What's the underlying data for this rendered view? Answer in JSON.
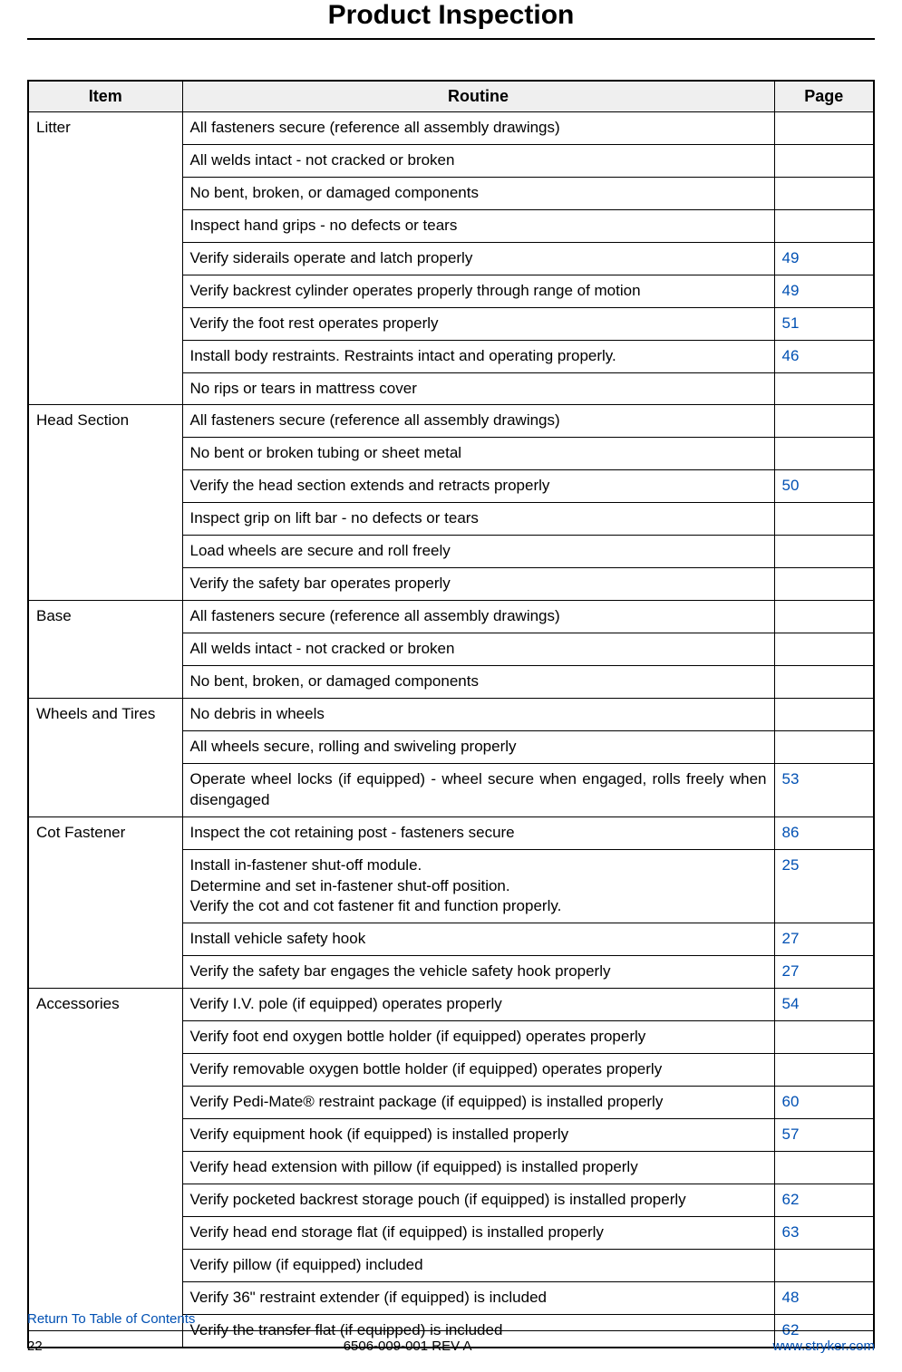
{
  "title": "Product Inspection",
  "headers": {
    "item": "Item",
    "routine": "Routine",
    "page": "Page"
  },
  "page_link_color": "#0050b3",
  "groups": [
    {
      "item": "Litter",
      "rows": [
        {
          "routine": "All fasteners secure (reference all assembly drawings)",
          "page": ""
        },
        {
          "routine": "All welds intact - not cracked or broken",
          "page": ""
        },
        {
          "routine": "No bent, broken, or damaged components",
          "page": ""
        },
        {
          "routine": "Inspect hand grips - no defects or tears",
          "page": ""
        },
        {
          "routine": "Verify siderails operate and latch properly",
          "page": "49"
        },
        {
          "routine": "Verify backrest cylinder operates properly through range of motion",
          "page": "49"
        },
        {
          "routine": "Verify the foot rest operates properly",
          "page": "51"
        },
        {
          "routine": "Install body restraints. Restraints intact and operating properly.",
          "page": "46"
        },
        {
          "routine": "No rips or tears in mattress cover",
          "page": ""
        }
      ]
    },
    {
      "item": "Head Section",
      "rows": [
        {
          "routine": "All fasteners secure (reference all assembly drawings)",
          "page": ""
        },
        {
          "routine": "No bent or broken tubing or sheet metal",
          "page": ""
        },
        {
          "routine": "Verify the head section extends and retracts properly",
          "page": "50"
        },
        {
          "routine": "Inspect grip on lift bar - no defects or tears",
          "page": ""
        },
        {
          "routine": "Load wheels are secure and roll freely",
          "page": ""
        },
        {
          "routine": "Verify the safety bar operates properly",
          "page": ""
        }
      ]
    },
    {
      "item": "Base",
      "rows": [
        {
          "routine": "All fasteners secure (reference all assembly drawings)",
          "page": ""
        },
        {
          "routine": "All welds intact - not cracked or broken",
          "page": ""
        },
        {
          "routine": "No bent, broken, or damaged components",
          "page": ""
        }
      ]
    },
    {
      "item": "Wheels and Tires",
      "rows": [
        {
          "routine": "No debris in wheels",
          "page": ""
        },
        {
          "routine": "All wheels secure, rolling and swiveling properly",
          "page": ""
        },
        {
          "routine": "Operate wheel locks (if equipped) - wheel secure when engaged, rolls freely when disengaged",
          "page": "53",
          "justify": true
        }
      ]
    },
    {
      "item": "Cot Fastener",
      "rows": [
        {
          "routine": "Inspect the cot retaining post - fasteners secure",
          "page": "86"
        },
        {
          "routine": "Install in-fastener shut-off module.\nDetermine and set in-fastener shut-off position.\nVerify the cot and cot fastener fit and function properly.",
          "page": "25"
        },
        {
          "routine": "Install vehicle safety hook",
          "page": "27"
        },
        {
          "routine": "Verify the safety bar engages the vehicle safety hook properly",
          "page": "27"
        }
      ]
    },
    {
      "item": "Accessories",
      "rows": [
        {
          "routine": "Verify I.V. pole (if equipped) operates properly",
          "page": "54"
        },
        {
          "routine": "Verify foot end oxygen bottle holder (if equipped) operates properly",
          "page": ""
        },
        {
          "routine": "Verify removable oxygen bottle holder (if equipped) operates properly",
          "page": ""
        },
        {
          "routine": "Verify Pedi-Mate® restraint package (if equipped) is installed properly",
          "page": "60"
        },
        {
          "routine": "Verify equipment hook (if equipped) is installed properly",
          "page": "57"
        },
        {
          "routine": "Verify head extension with pillow (if equipped) is installed properly",
          "page": ""
        },
        {
          "routine": "Verify pocketed backrest storage pouch (if equipped) is installed properly",
          "page": "62"
        },
        {
          "routine": "Verify head end storage flat (if equipped) is installed properly",
          "page": "63"
        },
        {
          "routine": "Verify pillow (if equipped) included",
          "page": ""
        },
        {
          "routine": "Verify 36\" restraint extender (if equipped) is included",
          "page": "48"
        },
        {
          "routine": "Verify the transfer flat (if equipped) is included",
          "page": "62"
        }
      ]
    }
  ],
  "footer": {
    "toc": "Return To Table of Contents",
    "page_number": "22",
    "doc_id": "6506-009-001 REV A",
    "url": "www.stryker.com"
  }
}
